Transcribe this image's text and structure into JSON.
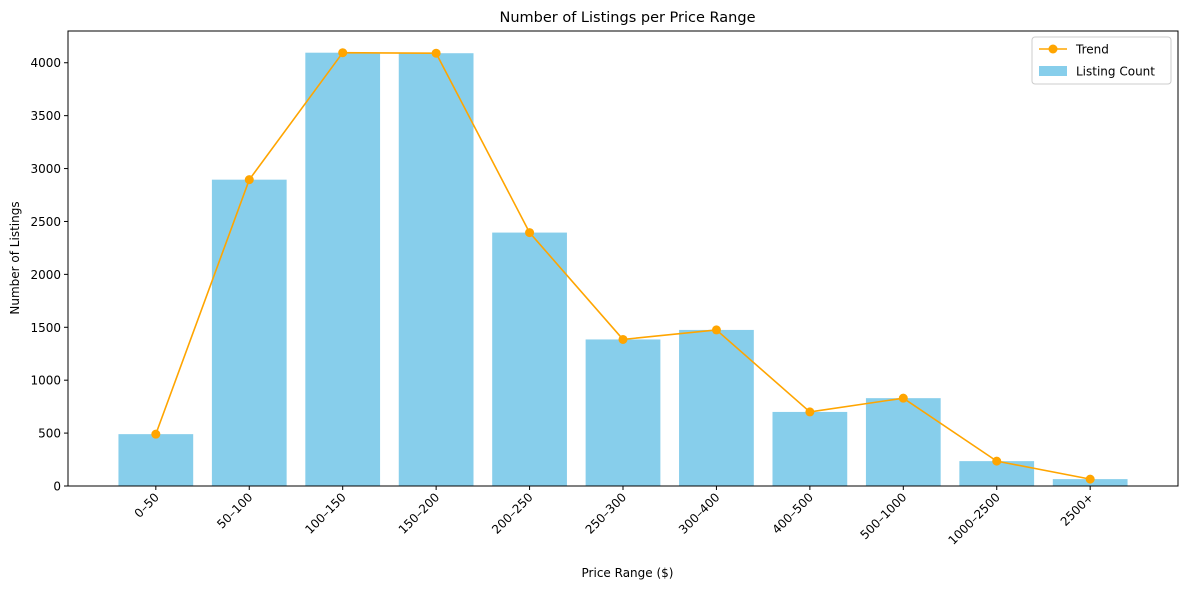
{
  "chart_data": {
    "type": "bar",
    "title": "Number of Listings per Price Range",
    "xlabel": "Price Range ($)",
    "ylabel": "Number of Listings",
    "categories": [
      "0–50",
      "50–100",
      "100–150",
      "150–200",
      "200–250",
      "250–300",
      "300–400",
      "400–500",
      "500–1000",
      "1000–2500",
      "2500+"
    ],
    "ylim": [
      0,
      4300
    ],
    "yticks": [
      0,
      500,
      1000,
      1500,
      2000,
      2500,
      3000,
      3500,
      4000
    ],
    "series": [
      {
        "name": "Listing Count",
        "type": "bar",
        "color": "#87ceeb",
        "values": [
          490,
          2895,
          4095,
          4090,
          2395,
          1385,
          1475,
          700,
          830,
          235,
          65
        ]
      },
      {
        "name": "Trend",
        "type": "line",
        "marker": "circle",
        "color": "#ffa500",
        "values": [
          490,
          2895,
          4095,
          4090,
          2395,
          1385,
          1475,
          700,
          830,
          235,
          65
        ]
      }
    ],
    "legend": {
      "position": "top-right",
      "entries": [
        "Trend",
        "Listing Count"
      ]
    },
    "grid": false
  }
}
